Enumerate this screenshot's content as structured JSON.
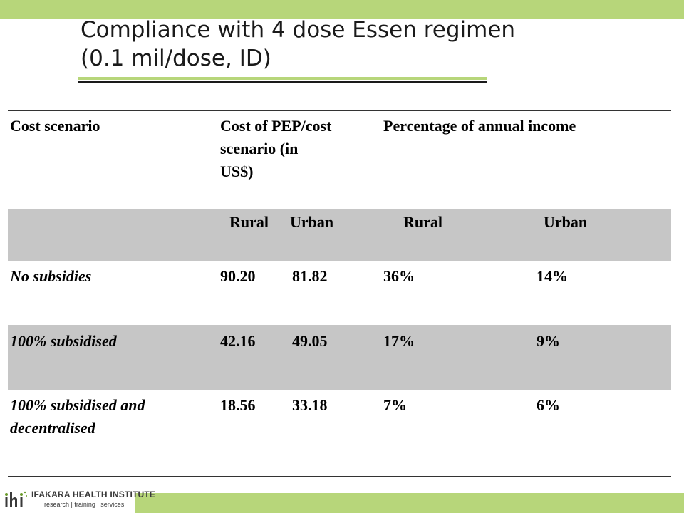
{
  "slide": {
    "title_line1": "Compliance with 4 dose Essen regimen",
    "title_line2": "(0.1 mil/dose, ID)"
  },
  "table": {
    "header": {
      "cost_scenario": "Cost scenario",
      "cost_pep_line1": "Cost of PEP/cost",
      "cost_pep_line2": "scenario (in",
      "cost_pep_line3": "US$)",
      "pct_income": "Percentage of annual income"
    },
    "subheader": [
      "Rural",
      "Urban",
      "Rural",
      "Urban"
    ],
    "rows": [
      {
        "scenario_line1": "No subsidies",
        "scenario_line2": "",
        "cost_rural": "90.20",
        "cost_urban": "81.82",
        "pct_rural": "36%",
        "pct_urban": "14%"
      },
      {
        "scenario_line1": "100% subsidised",
        "scenario_line2": "",
        "cost_rural": "42.16",
        "cost_urban": "49.05",
        "pct_rural": "17%",
        "pct_urban": "9%"
      },
      {
        "scenario_line1": "100% subsidised and",
        "scenario_line2": "decentralised",
        "cost_rural": "18.56",
        "cost_urban": "33.18",
        "pct_rural": "7%",
        "pct_urban": "6%"
      }
    ]
  },
  "footer": {
    "logo_mark": "ihi",
    "logo_name": "IFAKARA HEALTH INSTITUTE",
    "logo_tagline": "research | training | services"
  },
  "colors": {
    "accent_green": "#b7d67a",
    "row_shade": "#c6c6c6"
  }
}
